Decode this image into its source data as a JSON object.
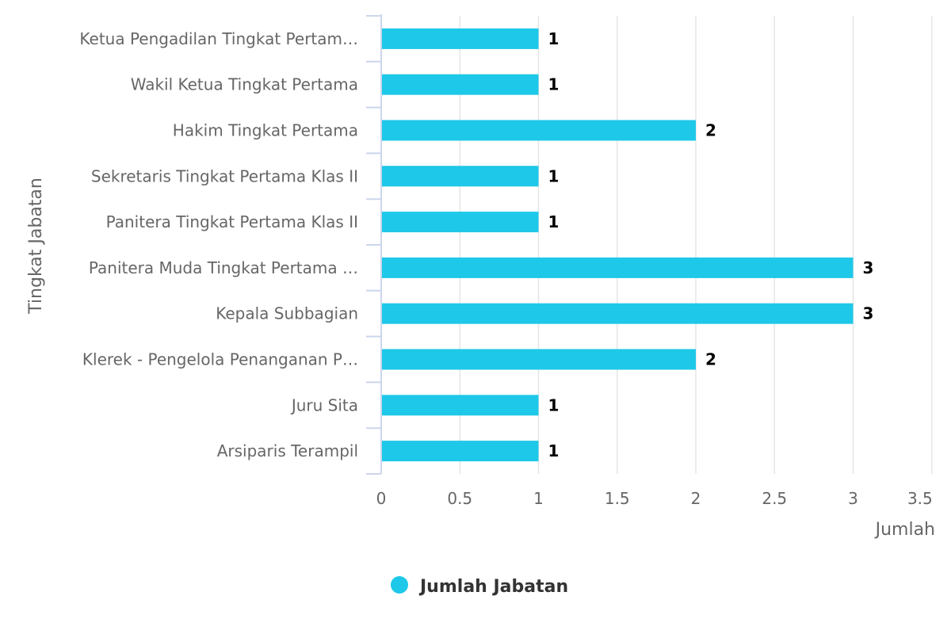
{
  "chart_data": {
    "type": "bar",
    "orientation": "horizontal",
    "title": "",
    "xlabel": "Jumlah",
    "ylabel": "Tingkat Jabatan",
    "categories": [
      "Ketua Pengadilan Tingkat Pertam…",
      "Wakil Ketua Tingkat Pertama",
      "Hakim Tingkat Pertama",
      "Sekretaris Tingkat Pertama Klas II",
      "Panitera Tingkat Pertama Klas II",
      "Panitera Muda Tingkat Pertama …",
      "Kepala Subbagian",
      "Klerek - Pengelola Penanganan P…",
      "Juru Sita",
      "Arsiparis Terampil"
    ],
    "series": [
      {
        "name": "Jumlah Jabatan",
        "values": [
          1,
          1,
          2,
          1,
          1,
          3,
          3,
          2,
          1,
          1
        ],
        "color": "#1ec8e8"
      }
    ],
    "xlim": [
      0,
      3.5
    ],
    "xticks": [
      "0",
      "0.5",
      "1",
      "1.5",
      "2",
      "2.5",
      "3",
      "3.5"
    ],
    "tick_values": [
      0,
      0.5,
      1,
      1.5,
      2,
      2.5,
      3,
      3.5
    ],
    "grid": true,
    "data_labels": true,
    "legend_position": "bottom-center"
  }
}
